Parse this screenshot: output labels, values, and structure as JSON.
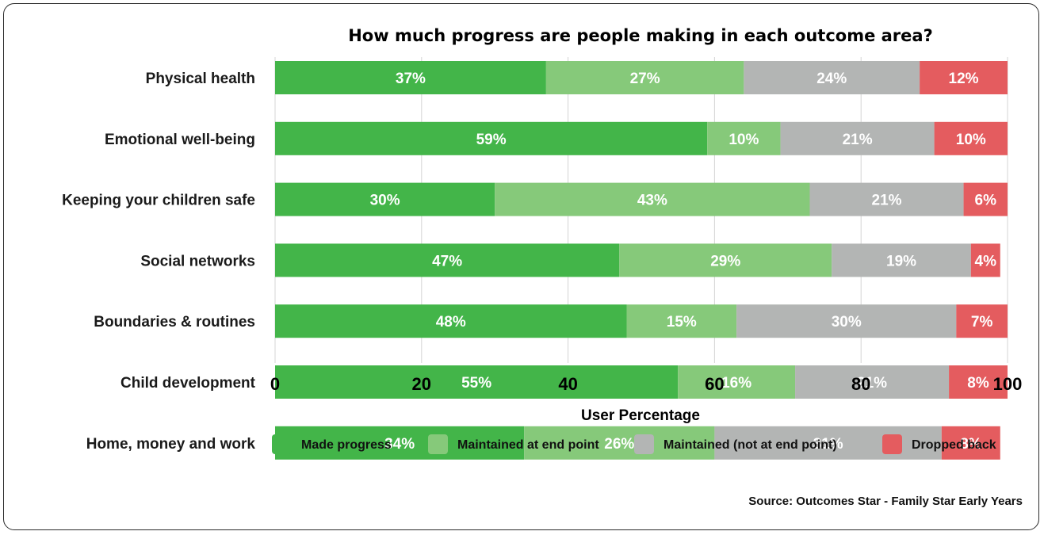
{
  "chart_data": {
    "type": "bar",
    "orientation": "horizontal",
    "stacked": true,
    "title": "How much progress are people making in each outcome area?",
    "xlabel": "User Percentage",
    "ylabel": "",
    "xlim": [
      0,
      100
    ],
    "xticks": [
      0,
      20,
      40,
      60,
      80,
      100
    ],
    "grid": true,
    "legend_position": "bottom",
    "categories": [
      "Physical health",
      "Emotional well-being",
      "Keeping your children safe",
      "Social networks",
      "Boundaries & routines",
      "Child development",
      "Home, money and work"
    ],
    "series": [
      {
        "name": "Made progress",
        "color": "#43b549",
        "values": [
          37,
          59,
          30,
          47,
          48,
          55,
          34
        ]
      },
      {
        "name": "Maintained at end point",
        "color": "#86c97a",
        "values": [
          27,
          10,
          43,
          29,
          15,
          16,
          26
        ]
      },
      {
        "name": "Maintained (not at end point)",
        "color": "#b3b5b4",
        "values": [
          24,
          21,
          21,
          19,
          30,
          21,
          31
        ]
      },
      {
        "name": "Dropped back",
        "color": "#e45c5f",
        "values": [
          12,
          10,
          6,
          4,
          7,
          8,
          8
        ]
      }
    ],
    "value_suffix": "%",
    "source": "Source: Outcomes Star - Family Star Early Years"
  }
}
